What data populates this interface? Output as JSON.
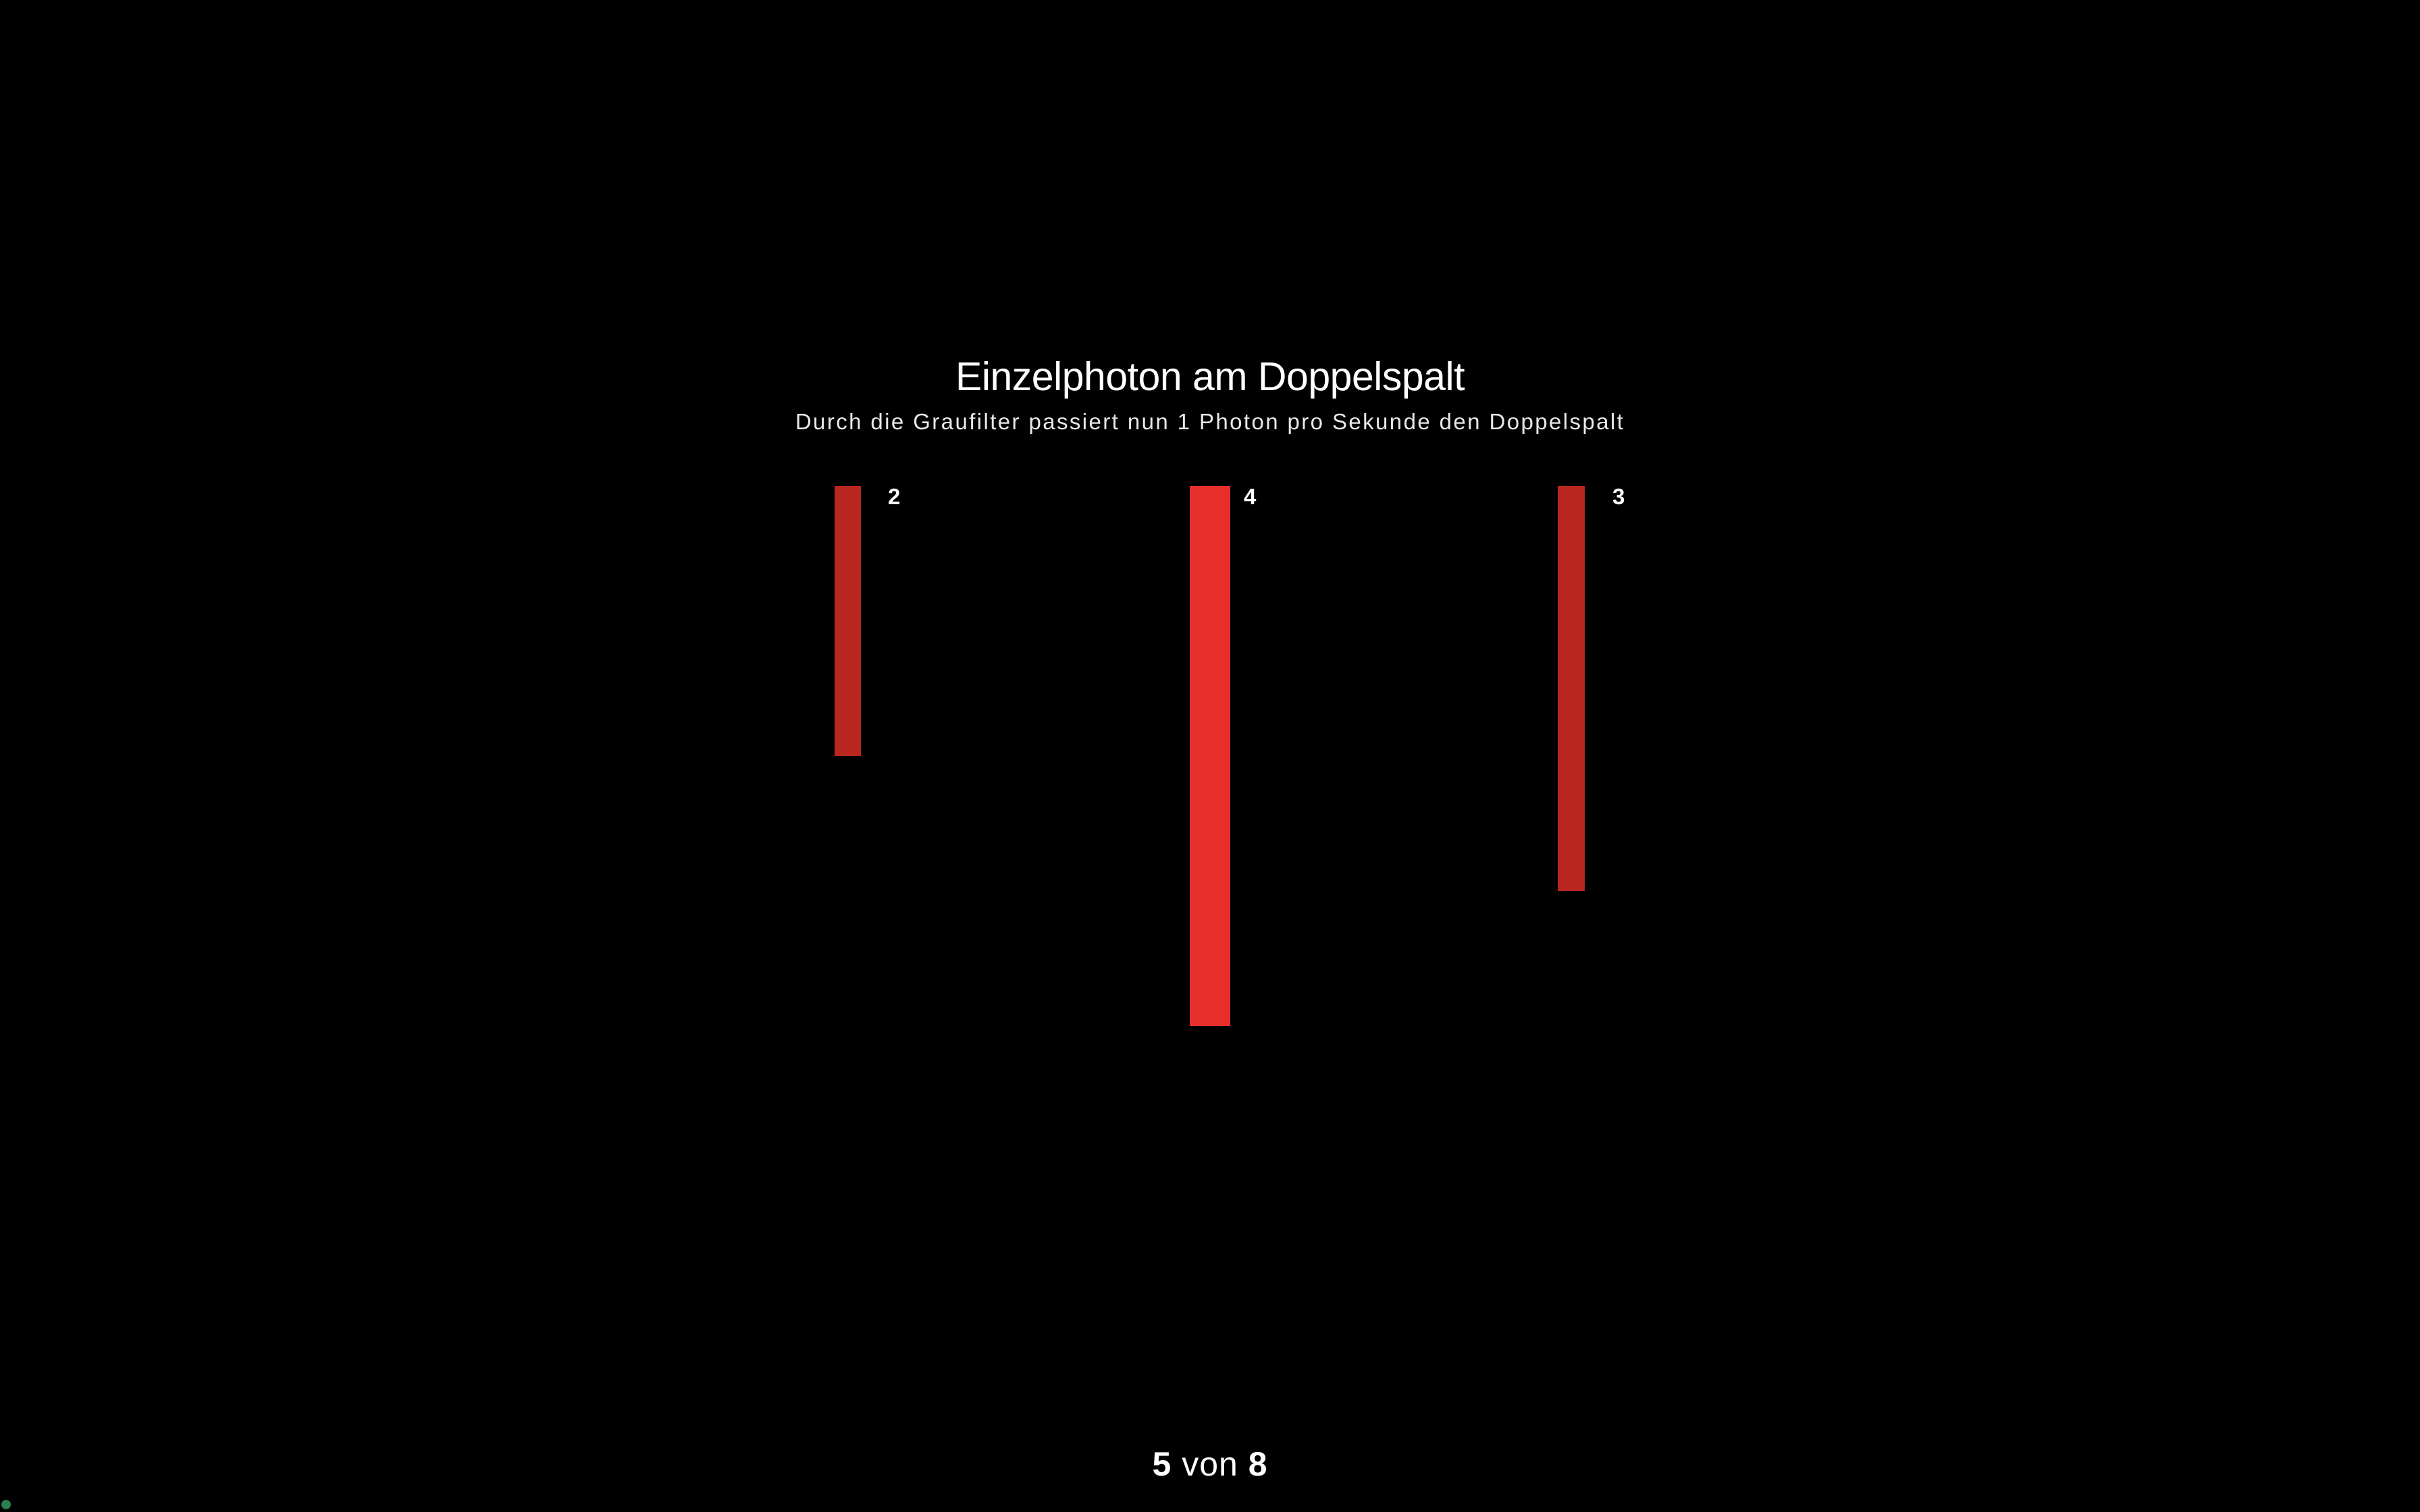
{
  "slide": {
    "title": "Einzelphoton am Doppelspalt",
    "subtitle": "Durch die Graufilter passiert nun 1 Photon pro Sekunde den Doppelspalt"
  },
  "chart_data": {
    "type": "bar",
    "values": [
      2,
      4,
      3
    ],
    "labels": [
      "2",
      "4",
      "3"
    ],
    "colors": [
      "#b8261f",
      "#e8302a",
      "#b8261f"
    ]
  },
  "pagination": {
    "current": "5",
    "separator": "von",
    "total": "8"
  }
}
